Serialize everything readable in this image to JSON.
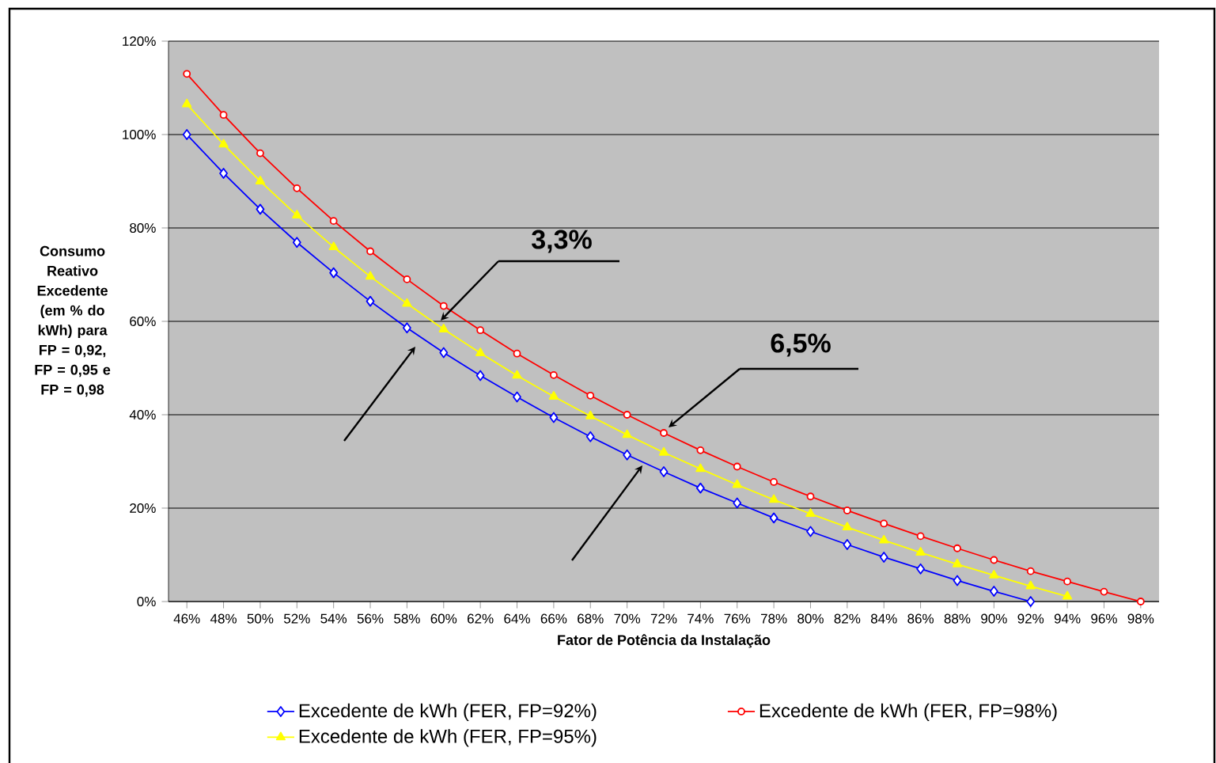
{
  "chart_data": {
    "type": "line",
    "xlabel": "Fator de Potência da Instalação",
    "ylabel": "Consumo Reativo Excedente (em % do kWh) para FP = 0,92, FP = 0,95 e FP = 0,98",
    "categories": [
      "46%",
      "48%",
      "50%",
      "52%",
      "54%",
      "56%",
      "58%",
      "60%",
      "62%",
      "64%",
      "66%",
      "68%",
      "70%",
      "72%",
      "74%",
      "76%",
      "78%",
      "80%",
      "82%",
      "84%",
      "86%",
      "88%",
      "90%",
      "92%",
      "94%",
      "96%",
      "98%"
    ],
    "series": [
      {
        "name": "Excedente de kWh (FER, FP=92%)",
        "color": "#0000ff",
        "marker": "diamond",
        "values": [
          100,
          91.7,
          84,
          76.9,
          70.4,
          64.3,
          58.6,
          53.3,
          48.4,
          43.8,
          39.4,
          35.3,
          31.4,
          27.8,
          24.3,
          21.1,
          17.9,
          15,
          12.2,
          9.5,
          7,
          4.5,
          2.2,
          0,
          null,
          null,
          null
        ]
      },
      {
        "name": "Excedente de kWh (FER, FP=98%)",
        "color": "#ff0000",
        "marker": "circle",
        "values": [
          113,
          104.2,
          96,
          88.5,
          81.5,
          75,
          69,
          63.3,
          58.1,
          53.1,
          48.5,
          44.1,
          40,
          36.1,
          32.4,
          28.9,
          25.6,
          22.5,
          19.5,
          16.7,
          14,
          11.4,
          8.9,
          6.5,
          4.3,
          2.1,
          0
        ]
      },
      {
        "name": "Excedente de kWh (FER, FP=95%)",
        "color": "#ffff00",
        "marker": "triangle",
        "values": [
          106.5,
          97.9,
          90,
          82.7,
          75.9,
          69.6,
          63.8,
          58.3,
          53.2,
          48.4,
          43.9,
          39.7,
          35.7,
          31.9,
          28.4,
          25,
          21.8,
          18.8,
          15.9,
          13.1,
          10.5,
          8,
          5.6,
          3.3,
          1.1,
          null,
          null
        ]
      }
    ],
    "ylim": [
      0,
      120
    ],
    "yticks": [
      {
        "value": 0,
        "label": "0%"
      },
      {
        "value": 20,
        "label": "20%"
      },
      {
        "value": 40,
        "label": "40%"
      },
      {
        "value": 60,
        "label": "60%"
      },
      {
        "value": 80,
        "label": "80%"
      },
      {
        "value": 100,
        "label": "100%"
      },
      {
        "value": 120,
        "label": "120%"
      }
    ],
    "grid": "y",
    "legend": "bottom",
    "annotations": [
      "3,3%",
      "6,5%"
    ]
  }
}
